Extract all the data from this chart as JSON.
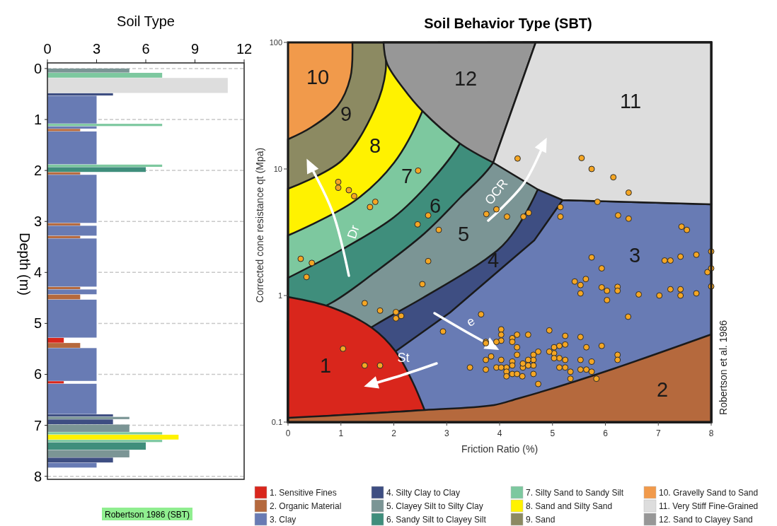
{
  "chart_data": [
    {
      "type": "bar",
      "orientation": "horizontal",
      "xlabel": "Soil Type",
      "ylabel": "Depth (m)",
      "xlim": [
        0,
        12
      ],
      "xticks": [
        0,
        3,
        6,
        9,
        12
      ],
      "ylim": [
        8.06,
        -0.11
      ],
      "yticks": [
        0,
        1,
        2,
        3,
        4,
        5,
        6,
        7,
        8
      ],
      "grid": "y",
      "annotations": [
        "Robertson 1986 (SBT)"
      ],
      "x": [
        0.0375,
        0.125,
        0.325,
        0.5,
        0.8,
        1.1,
        1.15,
        1.2,
        1.55,
        1.9,
        1.975,
        2.05,
        2.55,
        3.05,
        3.175,
        3.3,
        3.8,
        4.3,
        4.375,
        4.475,
        4.9,
        5.325,
        5.425,
        5.8,
        6.15,
        6.475,
        6.8,
        6.85,
        6.925,
        7.05,
        7.15,
        7.225,
        7.3,
        7.4,
        7.55,
        7.675,
        7.775
      ],
      "values": [
        5,
        7,
        11,
        4,
        3,
        7,
        3,
        2,
        3,
        7,
        6,
        2,
        3,
        2,
        3,
        2,
        3,
        2,
        3,
        2,
        3,
        1,
        2,
        3,
        1,
        3,
        4,
        5,
        4,
        5,
        7,
        8,
        7,
        6,
        5,
        4,
        3
      ],
      "colors": [
        "#7b9595",
        "#7dc89f",
        "#dddddd",
        "#3e4e82",
        "#687bb4",
        "#7dc89f",
        "#687bb4",
        "#b5693d",
        "#687bb4",
        "#7dc89f",
        "#3f8e7c",
        "#b5693d",
        "#687bb4",
        "#b5693d",
        "#687bb4",
        "#b5693d",
        "#687bb4",
        "#b5693d",
        "#687bb4",
        "#b5693d",
        "#687bb4",
        "#d9261c",
        "#b5693d",
        "#687bb4",
        "#d9261c",
        "#687bb4",
        "#3e4e82",
        "#7b9595",
        "#3e4e82",
        "#7b9595",
        "#7dc89f",
        "#fff200",
        "#7dc89f",
        "#3f8e7c",
        "#7b9595",
        "#3e4e82",
        "#687bb4"
      ]
    },
    {
      "type": "scatter",
      "title": "Soil Behavior Type (SBT)",
      "xlabel": "Friction Ratio (%)",
      "ylabel": "Corrected cone resistance qt (Mpa)",
      "xlim": [
        0,
        8
      ],
      "xticks": [
        0,
        1,
        2,
        3,
        4,
        5,
        6,
        7,
        8
      ],
      "ylim": [
        0.1,
        100
      ],
      "yticks": [
        0.1,
        1,
        10,
        100
      ],
      "log": "y",
      "marker": "circle",
      "annotations": [
        "1",
        "2",
        "3",
        "4",
        "5",
        "6",
        "7",
        "8",
        "9",
        "10",
        "11",
        "12",
        "Dr",
        "OCR",
        "e",
        "St",
        "Robertson et al. 1986"
      ],
      "series": [
        {
          "color": "#f5a623",
          "x": [
            0.95,
            0.95,
            1.15,
            1.25,
            1.55,
            1.65,
            2.46,
            2.45,
            2.65,
            2.85,
            3.75,
            3.94,
            4.14,
            4.34,
            5.55,
            5.74,
            6.15,
            6.44,
            5.85,
            5.15,
            5.15,
            4.45,
            4.55,
            6.24,
            6.44,
            7.44,
            7.54,
            8.0,
            0.24,
            0.45,
            0.35,
            2.65,
            2.54,
            1.45,
            1.74,
            2.04,
            2.04,
            2.14,
            3.65,
            2.93,
            1.04,
            1.45,
            1.74,
            5.74,
            5.93,
            5.42,
            5.53,
            5.53,
            5.63,
            5.93,
            6.03,
            6.03,
            6.23,
            6.23,
            6.43,
            6.63,
            7.02,
            7.12,
            7.23,
            7.23,
            7.42,
            7.42,
            7.42,
            7.72,
            7.72,
            7.93,
            8.0,
            8.0,
            4.03,
            4.03,
            4.03,
            3.74,
            3.74,
            3.94,
            4.24,
            4.24,
            4.33,
            4.54,
            4.94,
            5.24,
            5.53,
            5.93,
            6.23,
            6.23,
            5.64,
            5.53,
            5.74,
            5.53,
            5.64,
            5.74,
            5.83,
            5.34,
            5.34,
            5.24,
            5.13,
            5.24,
            5.13,
            5.24,
            5.13,
            5.03,
            5.03,
            5.03,
            4.94,
            4.73,
            4.64,
            4.64,
            4.64,
            4.64,
            4.73,
            4.54,
            4.54,
            4.44,
            4.44,
            4.33,
            4.33,
            4.24,
            4.24,
            4.24,
            4.33,
            4.13,
            4.13,
            4.13,
            4.03,
            3.94,
            4.03,
            3.84,
            3.74,
            3.74,
            3.44,
            4.43
          ],
          "values": [
            7.9,
            7.1,
            6.8,
            6.1,
            5.0,
            5.5,
            9.7,
            3.65,
            4.3,
            3.3,
            4.4,
            4.8,
            4.2,
            12.1,
            12.2,
            10,
            8.6,
            6.5,
            5.5,
            5.0,
            4.2,
            4.2,
            4.5,
            4.3,
            4.05,
            3.5,
            3.3,
            2.23,
            1.95,
            1.81,
            1.4,
            1.87,
            1.23,
            0.87,
            0.76,
            0.74,
            0.66,
            0.69,
            0.71,
            0.52,
            0.38,
            0.28,
            0.28,
            2.0,
            1.64,
            1.29,
            1.21,
            1.04,
            1.35,
            1.16,
            1.09,
            0.92,
            1.17,
            1.09,
            0.68,
            1.02,
            1.0,
            1.89,
            1.89,
            1.12,
            2.03,
            1.12,
            1.0,
            2.1,
            1.04,
            1.53,
            1.64,
            1.18,
            0.54,
            0.49,
            0.44,
            0.43,
            0.42,
            0.43,
            0.46,
            0.43,
            0.49,
            0.49,
            0.53,
            0.48,
            0.47,
            0.4,
            0.34,
            0.31,
            0.39,
            0.31,
            0.3,
            0.26,
            0.26,
            0.25,
            0.22,
            0.22,
            0.25,
            0.27,
            0.27,
            0.31,
            0.32,
            0.41,
            0.4,
            0.39,
            0.35,
            0.32,
            0.36,
            0.36,
            0.34,
            0.31,
            0.28,
            0.24,
            0.2,
            0.31,
            0.28,
            0.27,
            0.29,
            0.39,
            0.34,
            0.3,
            0.28,
            0.24,
            0.24,
            0.27,
            0.25,
            0.23,
            0.31,
            0.27,
            0.27,
            0.33,
            0.31,
            0.26,
            0.27,
            0.23
          ]
        }
      ]
    },
    {
      "type": "other",
      "categories": [
        "1. Sensitive Fines",
        "2. Organic Material",
        "3. Clay",
        "4. Silty Clay to Clay",
        "5. Clayey Silt to Silty Clay",
        "6. Sandy Silt to Clayey Silt",
        "7. Silty Sand to Sandy Silt",
        "8. Sand and Silty Sand",
        "9. Sand",
        "10. Gravelly Sand to Sand",
        "11. Very Stiff Fine-Grained",
        "12. Sand to Clayey Sand"
      ],
      "colors": [
        "#d9261c",
        "#b5693d",
        "#687bb4",
        "#3e4e82",
        "#7b9595",
        "#3f8e7c",
        "#7dc89f",
        "#fff200",
        "#8c8a62",
        "#f19a4b",
        "#dddddd",
        "#979797"
      ]
    }
  ]
}
